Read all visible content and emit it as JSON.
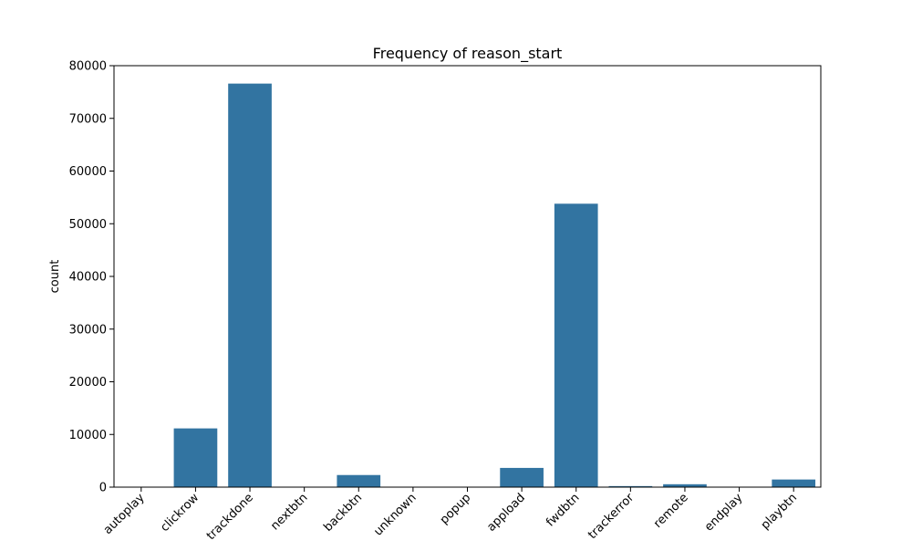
{
  "chart_data": {
    "type": "bar",
    "title": "Frequency of reason_start",
    "xlabel": "",
    "ylabel": "count",
    "categories": [
      "autoplay",
      "clickrow",
      "trackdone",
      "nextbtn",
      "backbtn",
      "unknown",
      "popup",
      "appload",
      "fwdbtn",
      "trackerror",
      "remote",
      "endplay",
      "playbtn"
    ],
    "values": [
      50,
      11150,
      76600,
      30,
      2300,
      20,
      20,
      3650,
      53800,
      200,
      550,
      30,
      1450
    ],
    "ylim": [
      0,
      80000
    ],
    "yticks": [
      0,
      10000,
      20000,
      30000,
      40000,
      50000,
      60000,
      70000,
      80000
    ],
    "bar_color": "#3274a1",
    "grid": false,
    "legend": "none"
  }
}
